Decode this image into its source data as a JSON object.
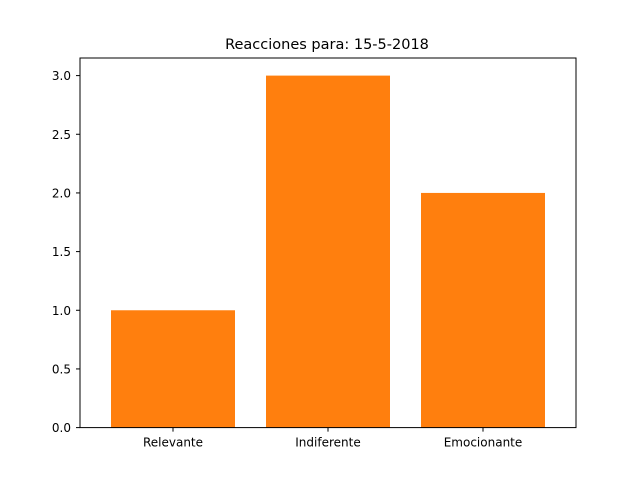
{
  "chart_data": {
    "type": "bar",
    "title": "Reacciones para: 15-5-2018",
    "xlabel": "",
    "ylabel": "",
    "categories": [
      "Relevante",
      "Indiferente",
      "Emocionante"
    ],
    "values": [
      1,
      3,
      2
    ],
    "ylim": [
      0,
      3.15
    ],
    "yticks": [
      0.0,
      0.5,
      1.0,
      1.5,
      2.0,
      2.5,
      3.0
    ],
    "ytick_labels": [
      "0.0",
      "0.5",
      "1.0",
      "1.5",
      "2.0",
      "2.5",
      "3.0"
    ],
    "grid": false,
    "legend": "none",
    "bar_color": "#ff7f0e"
  }
}
